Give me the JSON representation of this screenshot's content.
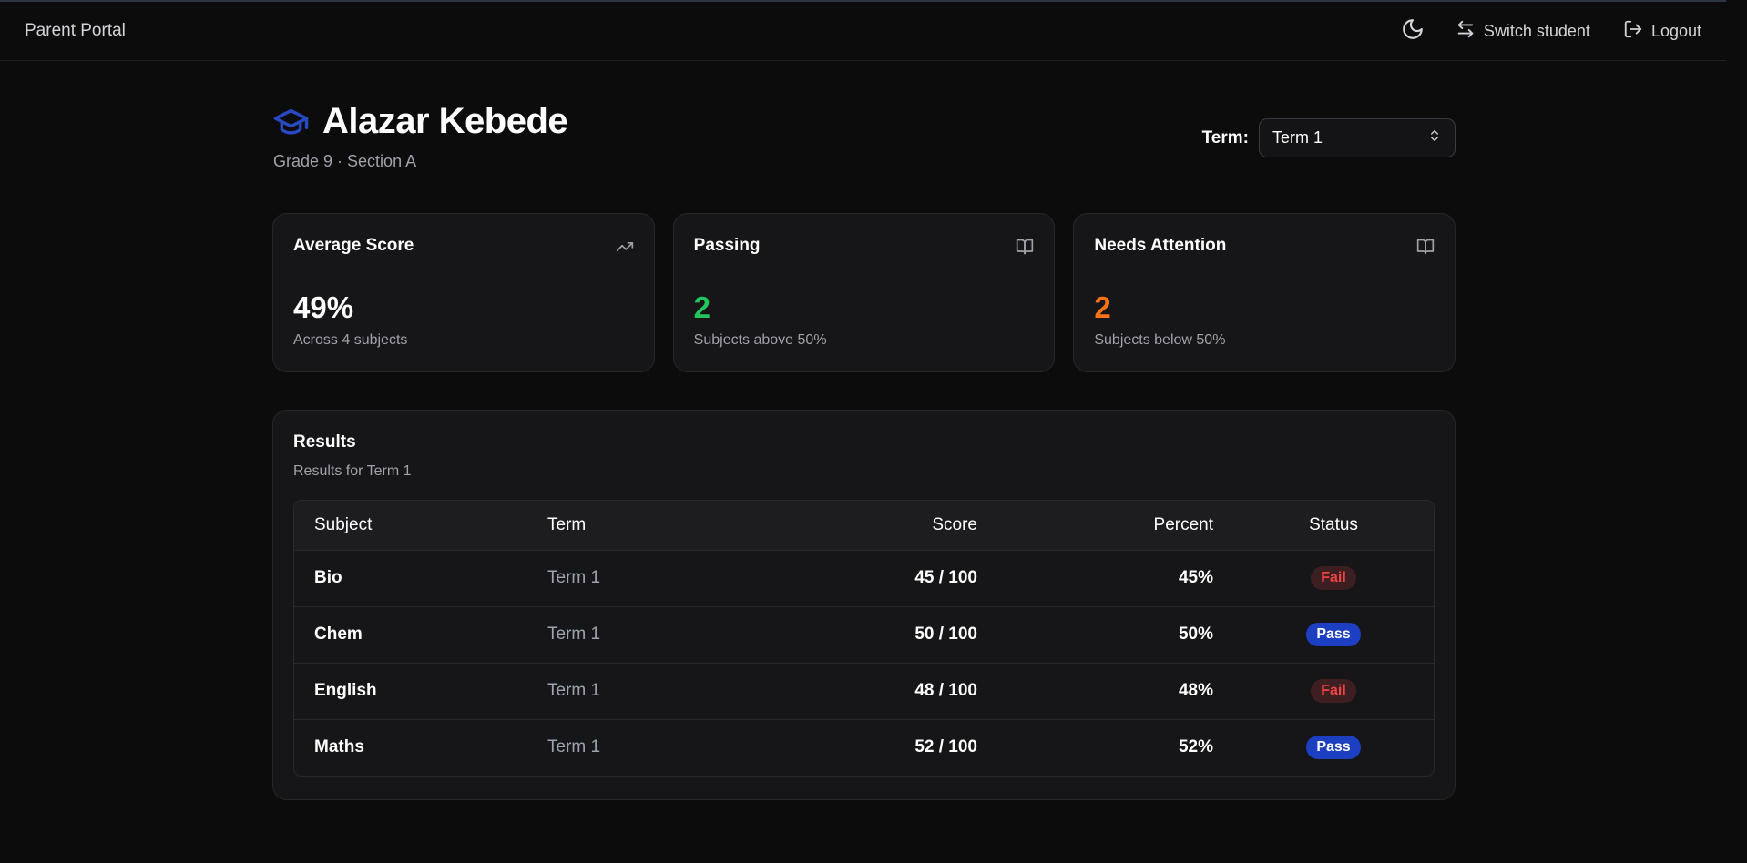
{
  "topbar": {
    "brand": "Parent Portal",
    "theme_icon": "moon-icon",
    "switch_label": "Switch student",
    "logout_label": "Logout"
  },
  "student": {
    "name": "Alazar Kebede",
    "subtitle": "Grade 9 · Section A",
    "icon": "graduation-cap-icon"
  },
  "term_filter": {
    "label": "Term:",
    "selected": "Term 1"
  },
  "cards": [
    {
      "title": "Average Score",
      "value": "49%",
      "note": "Across 4 subjects",
      "icon": "trending-up-icon",
      "color": "#ffffff"
    },
    {
      "title": "Passing",
      "value": "2",
      "note": "Subjects above 50%",
      "icon": "book-open-icon",
      "color": "#22c55e"
    },
    {
      "title": "Needs Attention",
      "value": "2",
      "note": "Subjects below 50%",
      "icon": "book-open-icon",
      "color": "#f97316"
    }
  ],
  "results": {
    "title": "Results",
    "subtitle": "Results for Term 1",
    "columns": [
      "Subject",
      "Term",
      "Score",
      "Percent",
      "Status"
    ],
    "rows": [
      {
        "subject": "Bio",
        "term": "Term 1",
        "score": "45 / 100",
        "percent": "45%",
        "status": "Fail"
      },
      {
        "subject": "Chem",
        "term": "Term 1",
        "score": "50 / 100",
        "percent": "50%",
        "status": "Pass"
      },
      {
        "subject": "English",
        "term": "Term 1",
        "score": "48 / 100",
        "percent": "48%",
        "status": "Fail"
      },
      {
        "subject": "Maths",
        "term": "Term 1",
        "score": "52 / 100",
        "percent": "52%",
        "status": "Pass"
      }
    ]
  },
  "colors": {
    "accent": "#2749c4",
    "pass_badge": "#1d3fc2",
    "fail_badge_text": "#ef4444",
    "success": "#22c55e",
    "warning": "#f97316"
  }
}
